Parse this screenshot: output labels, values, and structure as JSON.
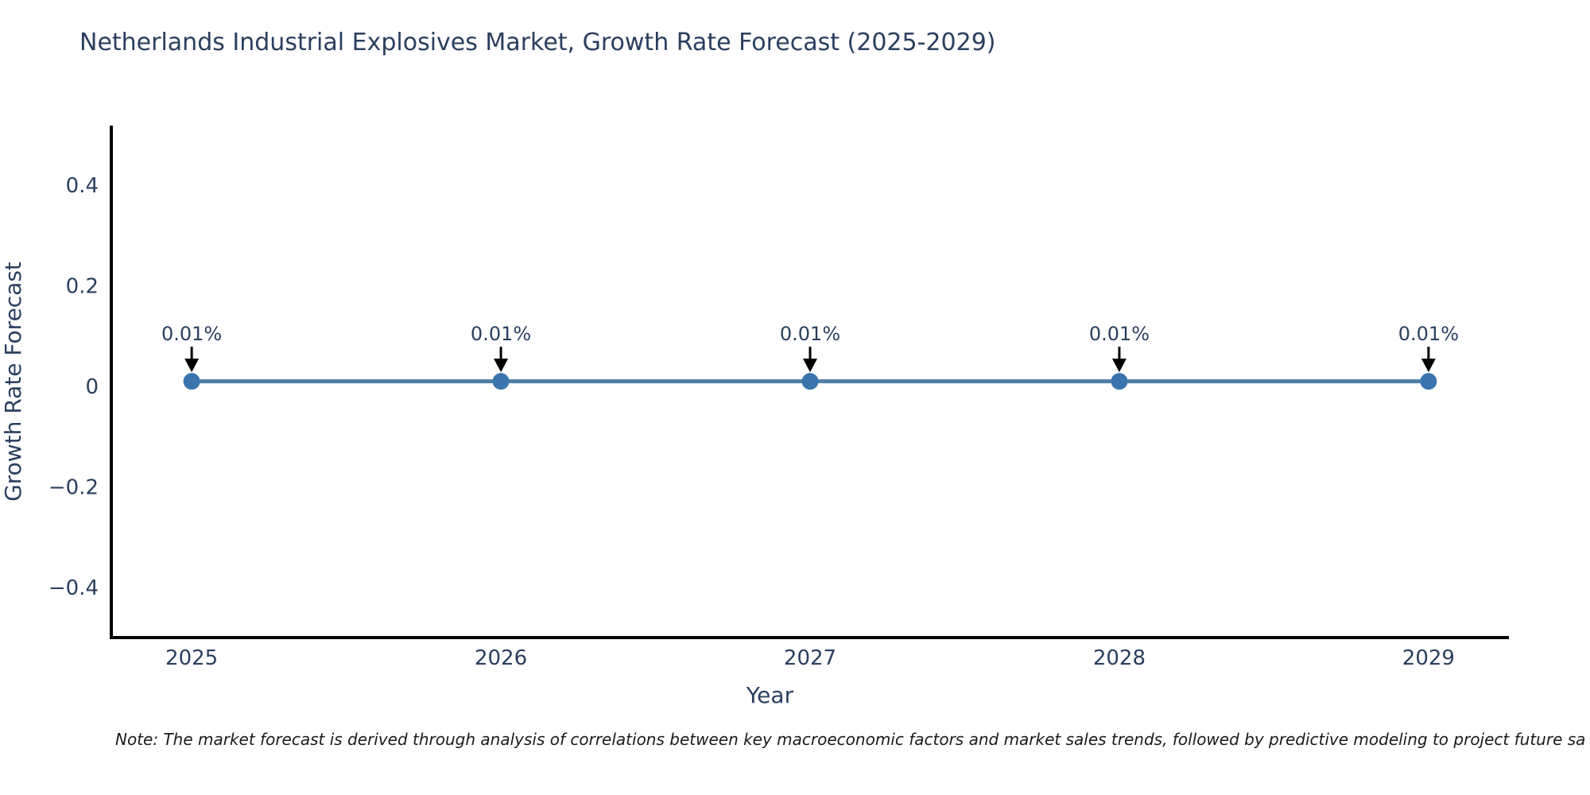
{
  "chart_data": {
    "type": "line",
    "title": "Netherlands Industrial Explosives Market, Growth Rate Forecast (2025-2029)",
    "xlabel": "Year",
    "ylabel": "Growth Rate Forecast",
    "x": [
      2025,
      2026,
      2027,
      2028,
      2029
    ],
    "series": [
      {
        "name": "Growth Rate Forecast",
        "values": [
          0.01,
          0.01,
          0.01,
          0.01,
          0.01
        ]
      }
    ],
    "point_labels": [
      "0.01%",
      "0.01%",
      "0.01%",
      "0.01%",
      "0.01%"
    ],
    "x_ticks": [
      {
        "value": 2025,
        "label": "2025"
      },
      {
        "value": 2026,
        "label": "2026"
      },
      {
        "value": 2027,
        "label": "2027"
      },
      {
        "value": 2028,
        "label": "2028"
      },
      {
        "value": 2029,
        "label": "2029"
      }
    ],
    "y_ticks": [
      {
        "value": 0.4,
        "label": "0.4"
      },
      {
        "value": 0.2,
        "label": "0.2"
      },
      {
        "value": 0,
        "label": "0"
      },
      {
        "value": -0.2,
        "label": "−0.2"
      },
      {
        "value": -0.4,
        "label": "−0.4"
      }
    ],
    "xlim": [
      2024.74,
      2029.26
    ],
    "ylim": [
      -0.496,
      0.515
    ],
    "grid": false,
    "legend": "none",
    "colors": {
      "line": "#4d7ea8",
      "marker": "#3a74ad",
      "axis": "#000000",
      "text": "#2a3f5f",
      "arrow": "#000000",
      "background": "#ffffff"
    }
  },
  "note": "Note: The market forecast is derived through analysis of correlations between key macroeconomic factors and market sales trends, followed by predictive modeling to project future sa"
}
